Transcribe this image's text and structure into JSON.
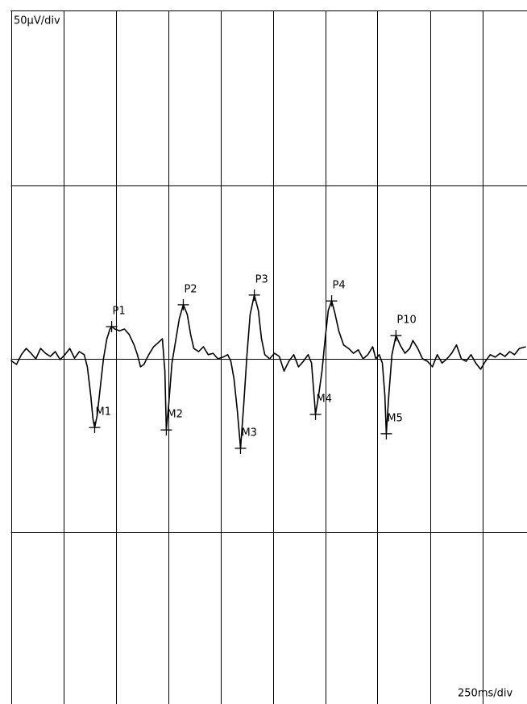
{
  "chart_data": {
    "type": "line",
    "y_label": "50µV/div",
    "x_label": "250ms/div",
    "color": "#000000",
    "xlim": [
      0,
      2500
    ],
    "ylim": [
      -100,
      100
    ],
    "xticks": [
      0,
      250,
      500,
      750,
      1000,
      1250,
      1500,
      1750,
      2000,
      2250
    ],
    "yticks": [
      -50,
      0,
      50
    ],
    "grid": true,
    "x": [
      0,
      27,
      50,
      73,
      96,
      119,
      142,
      165,
      188,
      212,
      235,
      258,
      281,
      304,
      327,
      350,
      365,
      381,
      392,
      400,
      412,
      427,
      442,
      458,
      473,
      481,
      496,
      519,
      542,
      565,
      588,
      604,
      619,
      635,
      658,
      681,
      704,
      723,
      735,
      742,
      754,
      769,
      788,
      804,
      823,
      842,
      858,
      873,
      896,
      919,
      942,
      965,
      988,
      1012,
      1035,
      1050,
      1065,
      1081,
      1096,
      1112,
      1127,
      1142,
      1162,
      1181,
      1196,
      1212,
      1235,
      1258,
      1281,
      1304,
      1327,
      1350,
      1373,
      1396,
      1419,
      1435,
      1450,
      1454,
      1469,
      1485,
      1500,
      1515,
      1531,
      1546,
      1565,
      1588,
      1612,
      1635,
      1658,
      1681,
      1704,
      1727,
      1742,
      1758,
      1773,
      1785,
      1792,
      1804,
      1819,
      1838,
      1858,
      1881,
      1904,
      1919,
      1942,
      1965,
      1988,
      2012,
      2035,
      2058,
      2081,
      2104,
      2127,
      2150,
      2173,
      2196,
      2219,
      2242,
      2265,
      2288,
      2312,
      2335,
      2358,
      2381,
      2404,
      2427,
      2458
    ],
    "values": [
      -0.5,
      -1.6,
      1.2,
      3.0,
      1.6,
      0,
      3.0,
      1.6,
      0.7,
      2.1,
      -0.2,
      1.2,
      3.0,
      0.2,
      2.1,
      1.2,
      -2.3,
      -10.5,
      -17.4,
      -19.8,
      -16.3,
      -8.1,
      0,
      5.8,
      8.6,
      9.3,
      8.6,
      8.1,
      8.6,
      7.0,
      4.0,
      1.2,
      -2.3,
      -1.6,
      1.2,
      3.5,
      4.7,
      5.8,
      -3.5,
      -20.5,
      -12.8,
      -1.2,
      5.8,
      11.6,
      15.6,
      12.8,
      7.0,
      3.0,
      2.1,
      3.5,
      1.2,
      1.6,
      0,
      0.5,
      1.2,
      -0.7,
      -5.8,
      -15.1,
      -25.8,
      -12.8,
      1.2,
      12.8,
      18.4,
      14.0,
      5.8,
      1.2,
      0,
      1.6,
      0.7,
      -3.5,
      -0.7,
      1.2,
      -2.3,
      -0.7,
      1.2,
      -1.2,
      -12.8,
      -16.0,
      -10.5,
      -3.5,
      5.8,
      14.0,
      16.7,
      13.3,
      8.1,
      4.0,
      3.0,
      1.6,
      2.6,
      0,
      1.2,
      3.5,
      0,
      1.2,
      -1.2,
      -10.5,
      -21.6,
      -10.5,
      1.2,
      6.7,
      4.0,
      1.6,
      3.0,
      5.3,
      3.0,
      0,
      -0.7,
      -2.3,
      1.2,
      -1.2,
      0,
      1.6,
      4.0,
      0,
      -0.7,
      1.2,
      -1.2,
      -3.0,
      -0.7,
      1.2,
      0.5,
      1.6,
      0.7,
      2.1,
      1.2,
      3.0,
      3.5
    ],
    "markers": [
      {
        "label": "M1",
        "x": 400,
        "y": -19.8
      },
      {
        "label": "P1",
        "x": 481,
        "y": 9.3
      },
      {
        "label": "M2",
        "x": 742,
        "y": -20.5
      },
      {
        "label": "P2",
        "x": 823,
        "y": 15.6
      },
      {
        "label": "M3",
        "x": 1096,
        "y": -25.8
      },
      {
        "label": "P3",
        "x": 1162,
        "y": 18.4
      },
      {
        "label": "M4",
        "x": 1454,
        "y": -16.0
      },
      {
        "label": "P4",
        "x": 1531,
        "y": 16.7
      },
      {
        "label": "M5",
        "x": 1792,
        "y": -21.6
      },
      {
        "label": "P10",
        "x": 1838,
        "y": 6.7
      }
    ]
  }
}
